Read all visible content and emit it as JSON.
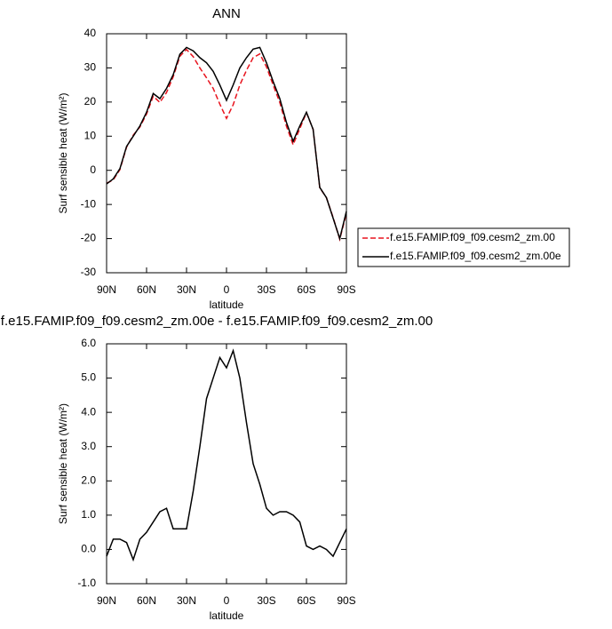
{
  "chart_data": [
    {
      "type": "line",
      "title": "ANN",
      "xlabel": "latitude",
      "ylabel": "Surf sensible heat (W/m²)",
      "x": [
        90,
        85,
        80,
        75,
        70,
        65,
        60,
        55,
        50,
        45,
        40,
        35,
        30,
        25,
        20,
        15,
        10,
        5,
        0,
        -5,
        -10,
        -15,
        -20,
        -25,
        -30,
        -35,
        -40,
        -45,
        -50,
        -55,
        -60,
        -65,
        -70,
        -75,
        -80,
        -85,
        -90
      ],
      "xlim": [
        90,
        -90
      ],
      "xticks": [
        {
          "value": 90,
          "label": "90N"
        },
        {
          "value": 60,
          "label": "60N"
        },
        {
          "value": 30,
          "label": "30N"
        },
        0,
        {
          "value": -30,
          "label": "30S"
        },
        {
          "value": -60,
          "label": "60S"
        },
        {
          "value": -90,
          "label": "90S"
        }
      ],
      "ylim": [
        -30,
        40
      ],
      "yticks": [
        -30,
        -20,
        -10,
        0,
        10,
        20,
        30,
        40
      ],
      "legend": "right",
      "series": [
        {
          "name": "f.e15.FAMIP.f09_f09.cesm2_zm.00",
          "color": "#e8141e",
          "dashed": true,
          "values": [
            -3.8,
            -2.8,
            0.2,
            6.8,
            10.3,
            12.7,
            16.5,
            21.7,
            19.9,
            22.8,
            27.4,
            33.4,
            35.4,
            33.3,
            30,
            27.1,
            24,
            19.4,
            15.2,
            19.2,
            25,
            29.3,
            33,
            34.1,
            30.3,
            25,
            19.9,
            12.9,
            7.5,
            12.2,
            16.9,
            12,
            -5.1,
            -8,
            -13.8,
            -20.2,
            -12.6
          ]
        },
        {
          "name": "f.e15.FAMIP.f09_f09.cesm2_zm.00e",
          "color": "#000000",
          "dashed": false,
          "values": [
            -4,
            -2.5,
            0.5,
            7,
            10,
            13,
            17,
            22.5,
            21,
            24,
            28,
            34,
            36,
            35,
            33,
            31.5,
            29,
            25,
            20.5,
            25,
            30,
            33,
            35.5,
            36,
            31.5,
            26,
            21,
            14,
            8.5,
            13,
            17,
            12,
            -5,
            -8,
            -14,
            -20,
            -12
          ]
        }
      ]
    },
    {
      "type": "line",
      "title": "f.e15.FAMIP.f09_f09.cesm2_zm.00e - f.e15.FAMIP.f09_f09.cesm2_zm.00",
      "xlabel": "latitude",
      "ylabel": "Surf sensible heat (W/m²)",
      "x": [
        90,
        85,
        80,
        75,
        70,
        65,
        60,
        55,
        50,
        45,
        40,
        35,
        30,
        25,
        20,
        15,
        10,
        5,
        0,
        -5,
        -10,
        -15,
        -20,
        -25,
        -30,
        -35,
        -40,
        -45,
        -50,
        -55,
        -60,
        -65,
        -70,
        -75,
        -80,
        -85,
        -90
      ],
      "xlim": [
        90,
        -90
      ],
      "xticks": [
        {
          "value": 90,
          "label": "90N"
        },
        {
          "value": 60,
          "label": "60N"
        },
        {
          "value": 30,
          "label": "30N"
        },
        0,
        {
          "value": -30,
          "label": "30S"
        },
        {
          "value": -60,
          "label": "60S"
        },
        {
          "value": -90,
          "label": "90S"
        }
      ],
      "ylim": [
        -1,
        6
      ],
      "yticks": [
        {
          "value": -1,
          "label": "-1.0"
        },
        {
          "value": 0,
          "label": "0.0"
        },
        {
          "value": 1,
          "label": "1.0"
        },
        {
          "value": 2,
          "label": "2.0"
        },
        {
          "value": 3,
          "label": "3.0"
        },
        {
          "value": 4,
          "label": "4.0"
        },
        {
          "value": 5,
          "label": "5.0"
        },
        {
          "value": 6,
          "label": "6.0"
        }
      ],
      "series": [
        {
          "color": "#000000",
          "dashed": false,
          "values": [
            -0.2,
            0.3,
            0.3,
            0.2,
            -0.3,
            0.3,
            0.5,
            0.8,
            1.1,
            1.2,
            0.6,
            0.6,
            0.6,
            1.7,
            3.0,
            4.4,
            5.0,
            5.6,
            5.3,
            5.8,
            5.0,
            3.7,
            2.5,
            1.9,
            1.2,
            1.0,
            1.1,
            1.1,
            1.0,
            0.8,
            0.1,
            0.0,
            0.1,
            0.0,
            -0.2,
            0.2,
            0.6
          ]
        }
      ]
    }
  ]
}
